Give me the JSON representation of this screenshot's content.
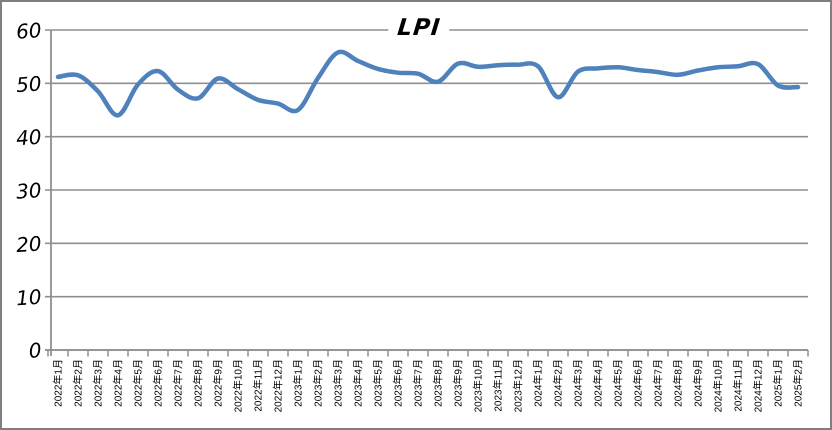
{
  "chart_data": {
    "type": "line",
    "title": "LPI",
    "categories": [
      "2022年1月",
      "2022年2月",
      "2022年3月",
      "2022年4月",
      "2022年5月",
      "2022年6月",
      "2022年7月",
      "2022年8月",
      "2022年9月",
      "2022年10月",
      "2022年11月",
      "2022年12月",
      "2023年1月",
      "2023年2月",
      "2023年3月",
      "2023年4月",
      "2023年5月",
      "2023年6月",
      "2023年7月",
      "2023年8月",
      "2023年9月",
      "2023年10月",
      "2023年11月",
      "2023年12月",
      "2024年1月",
      "2024年2月",
      "2024年3月",
      "2024年4月",
      "2024年5月",
      "2024年6月",
      "2024年7月",
      "2024年8月",
      "2024年9月",
      "2024年10月",
      "2024年11月",
      "2024年12月",
      "2025年1月",
      "2025年2月"
    ],
    "series": [
      {
        "name": "LPI",
        "values": [
          51.2,
          51.5,
          48.5,
          44.0,
          49.8,
          52.3,
          48.8,
          47.2,
          50.9,
          48.9,
          46.9,
          46.2,
          45.0,
          51.0,
          55.8,
          54.2,
          52.7,
          52.0,
          51.8,
          50.3,
          53.7,
          53.1,
          53.4,
          53.5,
          53.2,
          47.4,
          52.2,
          52.8,
          53.0,
          52.5,
          52.1,
          51.6,
          52.4,
          53.0,
          53.2,
          53.6,
          49.6,
          49.3
        ]
      }
    ],
    "xlabel": "",
    "ylabel": "",
    "ylim": [
      0,
      60
    ],
    "yticks": [
      "0",
      "10",
      "20",
      "30",
      "40",
      "50",
      "60"
    ],
    "grid": "horizontal",
    "legend": "none",
    "line_color": "#4F81BD",
    "grid_color": "#8f8f8f",
    "axis_color": "#8f8f8f",
    "frame_border_color": "#7f7f7f",
    "background_color": "#ffffff"
  }
}
